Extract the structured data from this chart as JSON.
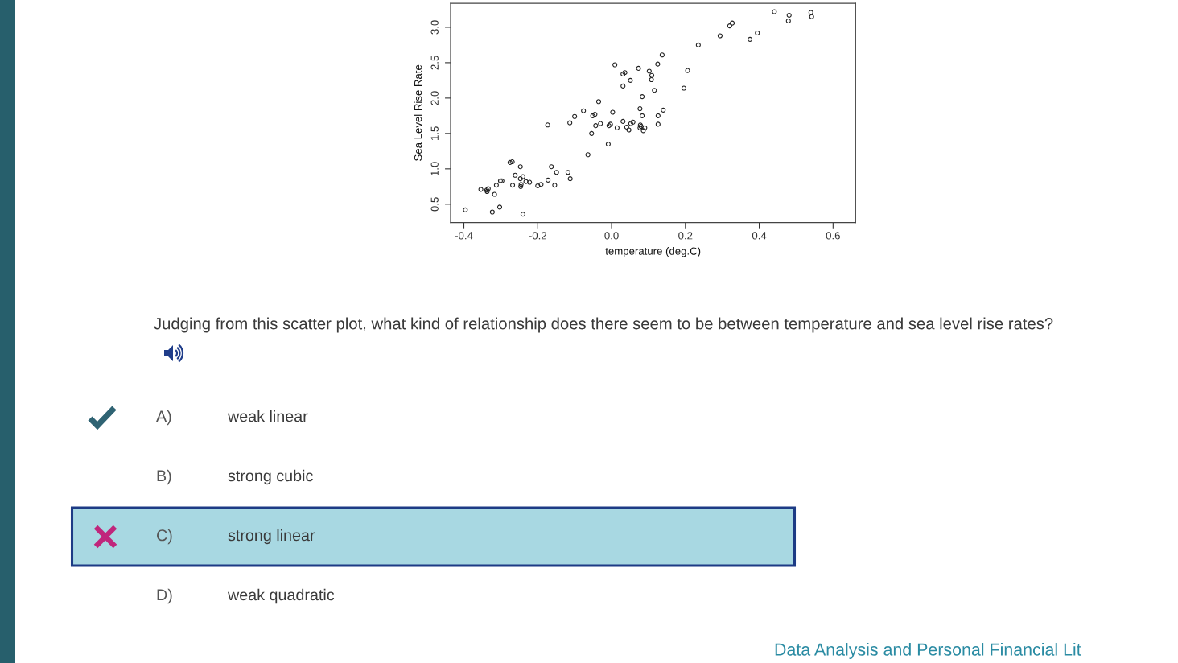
{
  "chart_data": {
    "type": "scatter",
    "xlabel": "temperature (deg.C)",
    "ylabel": "Sea Level Rise Rate",
    "x": [
      -0.396,
      -0.354,
      -0.338,
      -0.334,
      -0.337,
      -0.323,
      -0.317,
      -0.312,
      -0.303,
      -0.301,
      -0.297,
      -0.275,
      -0.269,
      -0.268,
      -0.261,
      -0.247,
      -0.247,
      -0.246,
      -0.245,
      -0.24,
      -0.24,
      -0.232,
      -0.222,
      -0.2,
      -0.191,
      -0.172,
      -0.173,
      -0.163,
      -0.154,
      -0.149,
      -0.118,
      -0.112,
      -0.113,
      -0.1,
      -0.076,
      -0.064,
      -0.054,
      -0.051,
      -0.045,
      -0.043,
      -0.035,
      -0.03,
      -0.009,
      -0.007,
      -0.003,
      0.003,
      0.009,
      0.015,
      0.031,
      0.036,
      0.031,
      0.031,
      0.041,
      0.047,
      0.051,
      0.052,
      0.058,
      0.073,
      0.083,
      0.077,
      0.083,
      0.078,
      0.08,
      0.077,
      0.086,
      0.09,
      0.102,
      0.109,
      0.108,
      0.116,
      0.125,
      0.126,
      0.126,
      0.137,
      0.14,
      0.196,
      0.206,
      0.235,
      0.294,
      0.32,
      0.327,
      0.375,
      0.395,
      0.441,
      0.479,
      0.481,
      0.54,
      0.542
    ],
    "values": [
      0.42,
      0.71,
      0.7,
      0.72,
      0.68,
      0.39,
      0.64,
      0.77,
      0.46,
      0.83,
      0.83,
      1.09,
      1.1,
      0.77,
      0.91,
      1.03,
      0.86,
      0.75,
      0.78,
      0.89,
      0.36,
      0.82,
      0.81,
      0.76,
      0.78,
      0.84,
      1.62,
      1.03,
      0.77,
      0.95,
      0.95,
      0.86,
      1.65,
      1.74,
      1.82,
      1.2,
      1.5,
      1.75,
      1.77,
      1.61,
      1.95,
      1.64,
      1.35,
      1.61,
      1.63,
      1.8,
      2.47,
      1.58,
      2.34,
      2.36,
      2.17,
      1.67,
      1.59,
      1.55,
      2.25,
      1.64,
      1.66,
      2.42,
      2.02,
      1.85,
      1.75,
      1.62,
      1.6,
      1.58,
      1.54,
      1.58,
      2.38,
      2.32,
      2.26,
      2.11,
      2.48,
      1.75,
      1.63,
      2.61,
      1.83,
      2.14,
      2.39,
      2.75,
      2.88,
      3.02,
      3.06,
      2.83,
      2.92,
      3.22,
      3.09,
      3.17,
      3.21,
      3.15
    ],
    "color": "#222222",
    "marker": "circle",
    "xlim": [
      -0.436,
      0.661
    ],
    "ylim": [
      0.24,
      3.34
    ],
    "xticks": [
      -0.4,
      -0.2,
      {
        "value": 0,
        "label": "0.0"
      },
      0.2,
      0.4,
      0.6
    ],
    "yticks": [
      0.5,
      {
        "value": 1,
        "label": "1.0"
      },
      1.5,
      {
        "value": 2,
        "label": "2.0"
      },
      2.5,
      {
        "value": 3,
        "label": "3.0"
      }
    ],
    "annotations": [
      "Judging from this scatter plot, what kind of relationship does there seem to be between temperature and sea level rise rates?",
      "A)",
      "weak linear",
      "B)",
      "strong cubic",
      "C)",
      "strong linear",
      "D)",
      "weak quadratic",
      "Data Analysis and Personal Financial Lit"
    ]
  }
}
